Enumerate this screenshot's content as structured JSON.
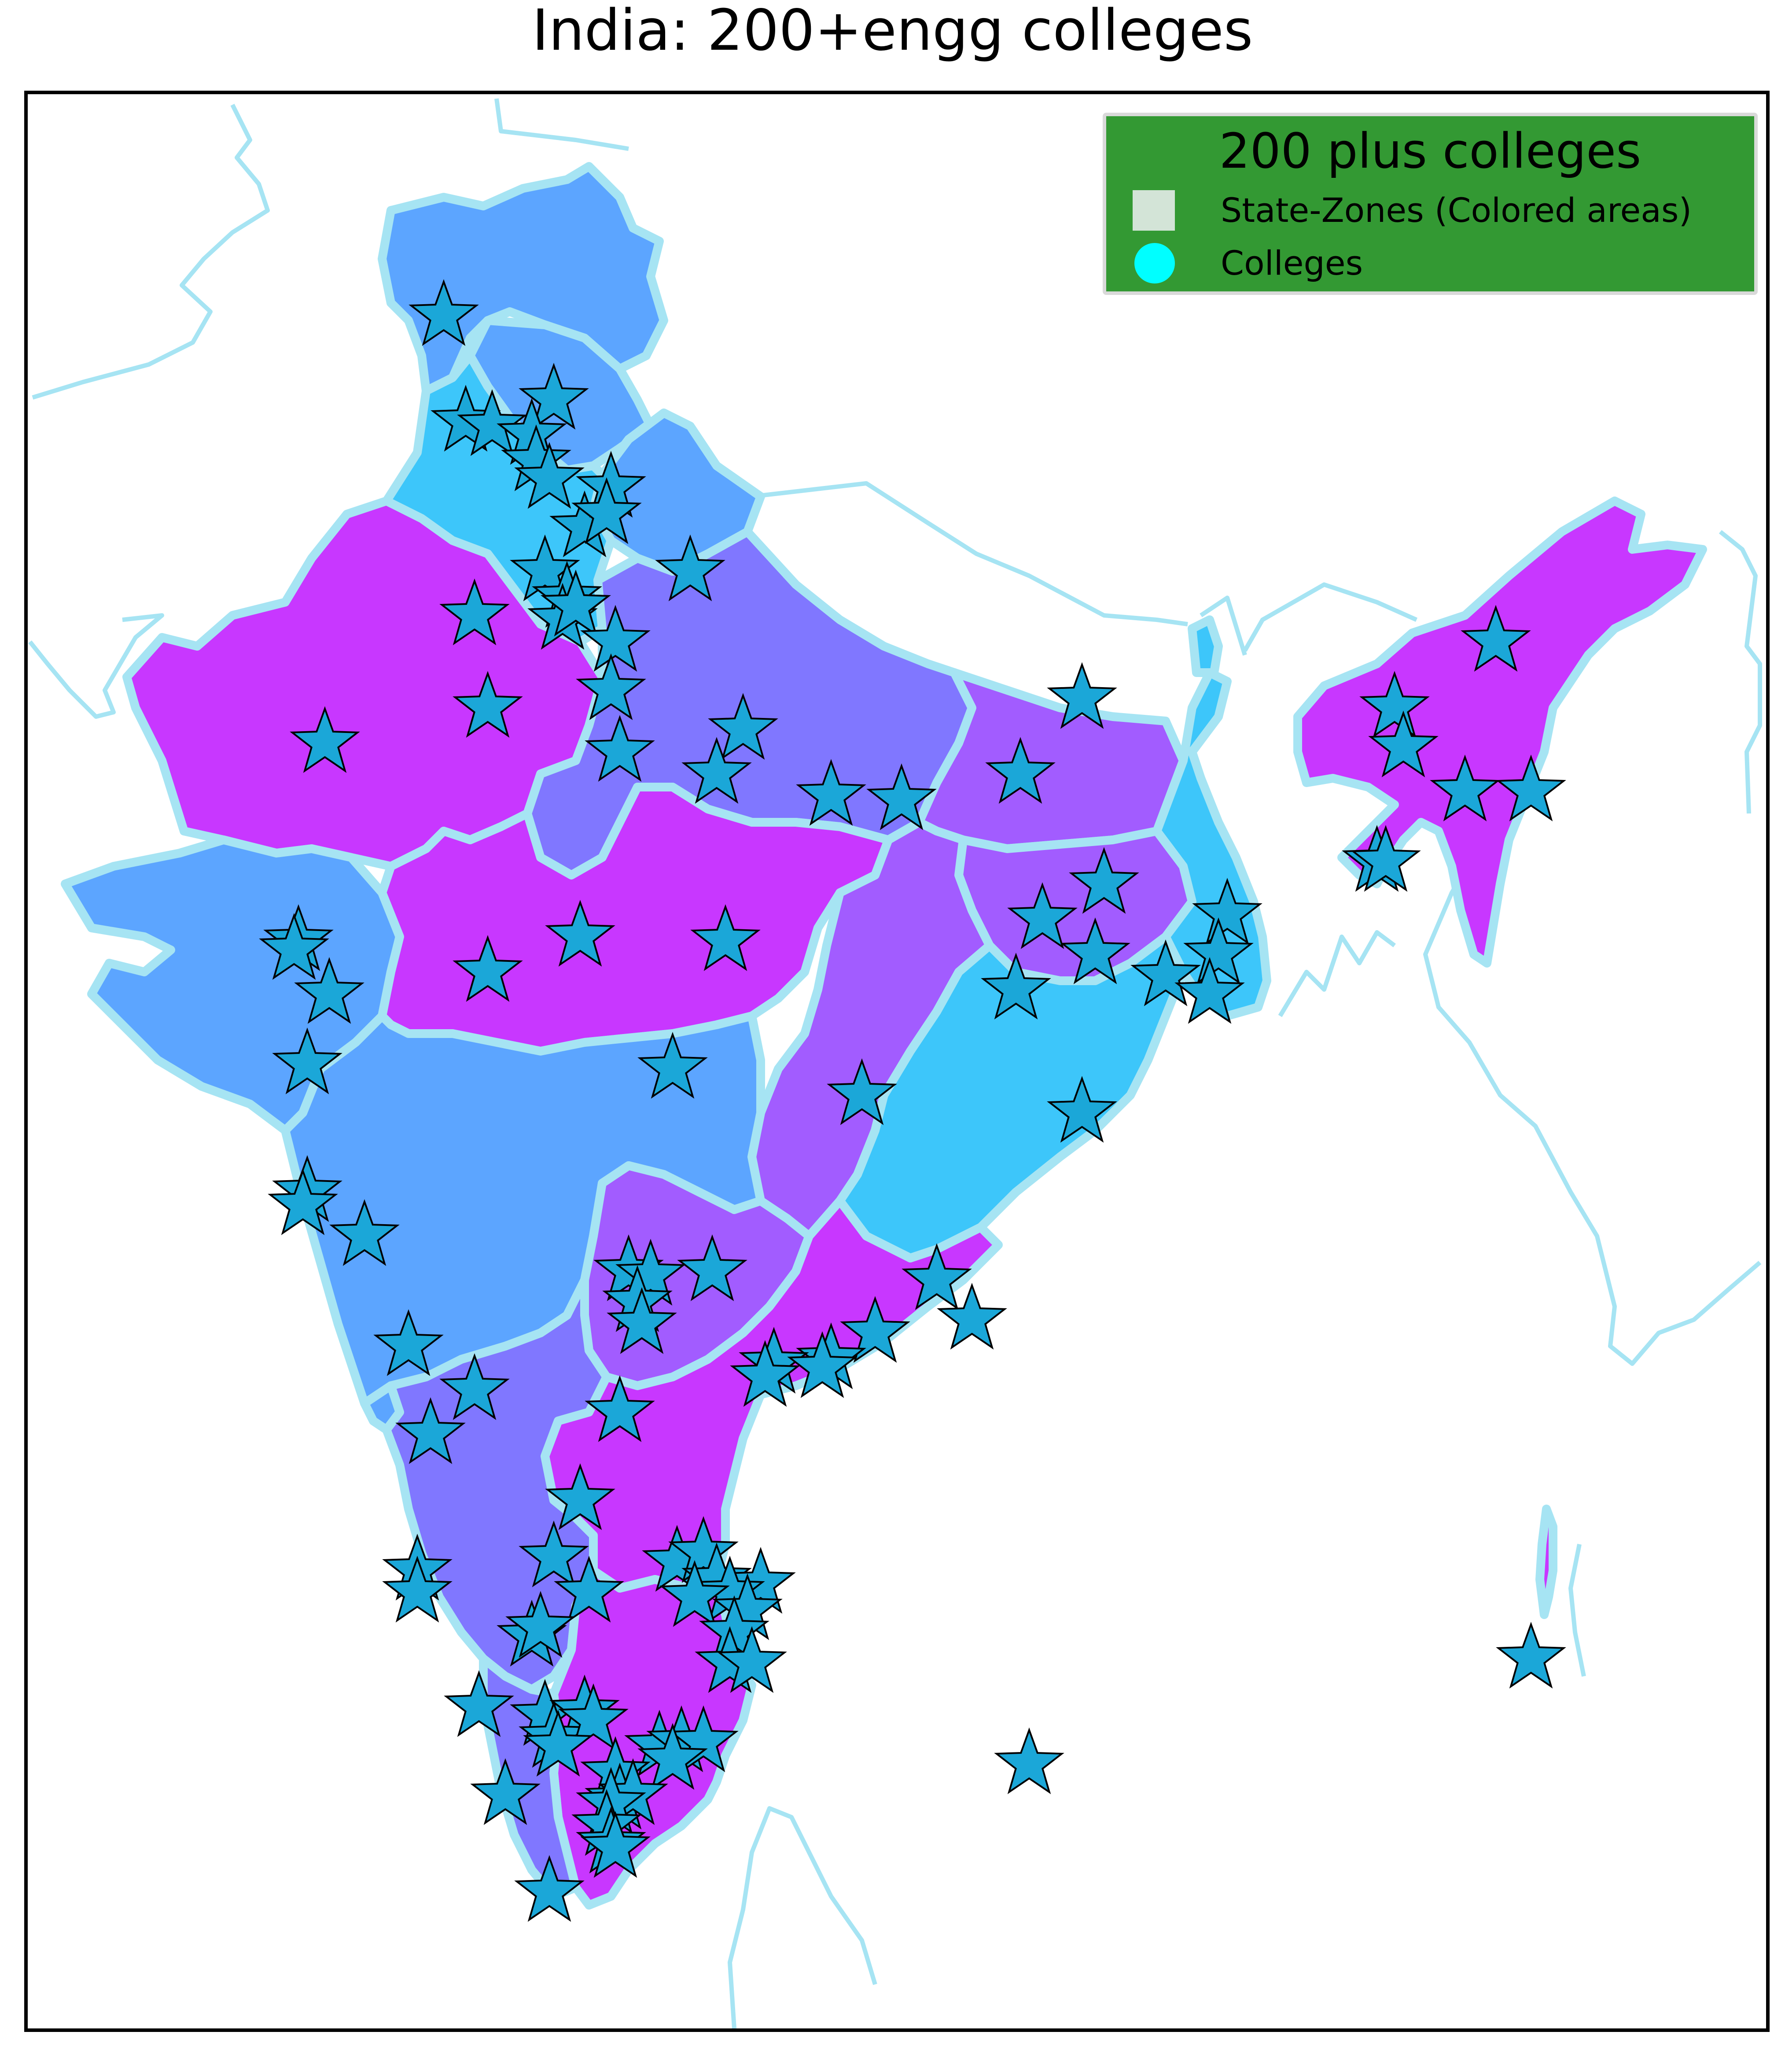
{
  "title": "India: 200+engg colleges",
  "legend": {
    "title": "200 plus colleges",
    "items": [
      {
        "label": "State-Zones (Colored areas)",
        "marker": "square",
        "color": "#d3e4d7"
      },
      {
        "label": "Colleges",
        "marker": "circle",
        "color": "#00ffff"
      }
    ],
    "background": "#339933"
  },
  "colors": {
    "border_line": "#a6e4f3",
    "zone_violet": "#c837ff",
    "zone_blue": "#5ca5ff",
    "zone_periwinkle": "#8077ff",
    "zone_purple": "#a25cff",
    "zone_sky": "#3dc6fa",
    "college_marker": "#1ba7d8",
    "marker_edge": "#000000"
  },
  "marker": {
    "icon": "star-icon",
    "count": 110
  }
}
